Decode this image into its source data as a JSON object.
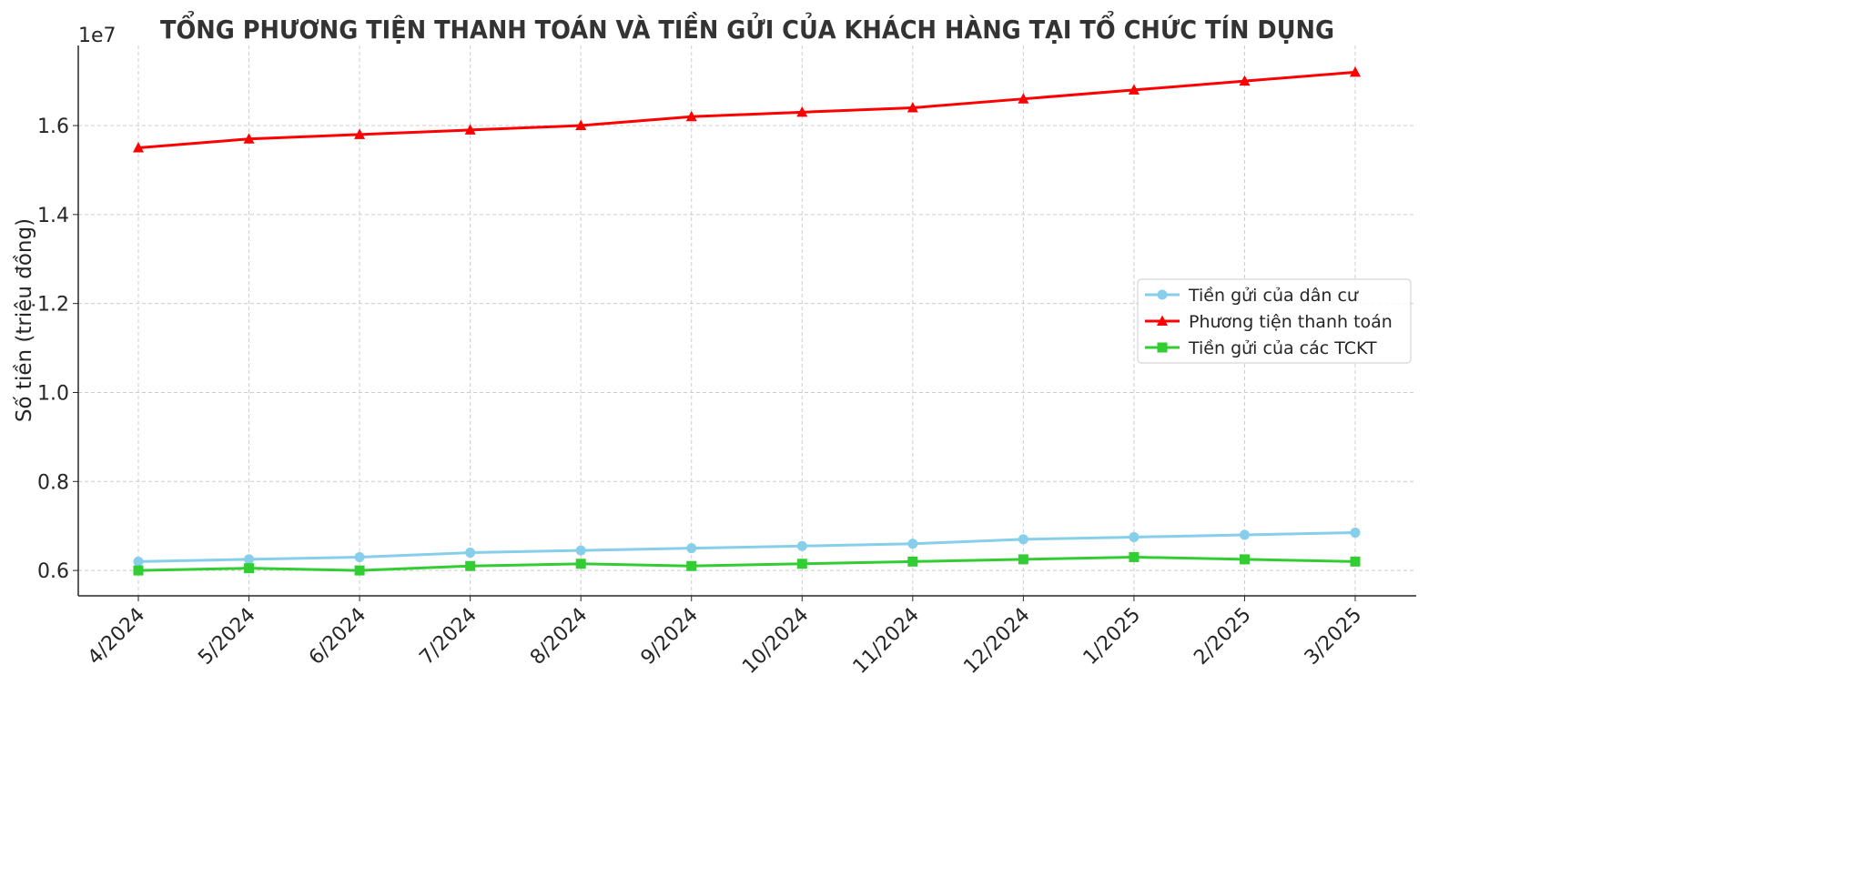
{
  "chart_data": {
    "type": "line",
    "title": "TỔNG PHƯƠNG TIỆN THANH TOÁN VÀ TIỀN GỬI CỦA KHÁCH HÀNG TẠI TỔ CHỨC TÍN DỤNG",
    "xlabel": "",
    "ylabel": "Số tiền (triệu đồng)",
    "y_scale_label": "1e7",
    "categories": [
      "4/2024",
      "5/2024",
      "6/2024",
      "7/2024",
      "8/2024",
      "9/2024",
      "10/2024",
      "11/2024",
      "12/2024",
      "1/2025",
      "2/2025",
      "3/2025"
    ],
    "ylim": [
      0.543,
      1.78
    ],
    "y_ticks": [
      0.6,
      0.8,
      1.0,
      1.2,
      1.4,
      1.6
    ],
    "y_tick_labels": [
      "0.6",
      "0.8",
      "1.0",
      "1.2",
      "1.4",
      "1.6"
    ],
    "grid": true,
    "legend_position": "center-right",
    "series": [
      {
        "name": "Tiền gửi của dân cư",
        "color": "#87ceeb",
        "marker": "circle",
        "values": [
          0.62,
          0.625,
          0.63,
          0.64,
          0.645,
          0.65,
          0.655,
          0.66,
          0.67,
          0.675,
          0.68,
          0.685
        ]
      },
      {
        "name": "Phương tiện thanh toán",
        "color": "#ff0000",
        "marker": "triangle",
        "values": [
          1.55,
          1.57,
          1.58,
          1.59,
          1.6,
          1.62,
          1.63,
          1.64,
          1.66,
          1.68,
          1.7,
          1.72
        ]
      },
      {
        "name": "Tiền gửi của các TCKT",
        "color": "#32cd32",
        "marker": "square",
        "values": [
          0.6,
          0.605,
          0.6,
          0.61,
          0.615,
          0.61,
          0.615,
          0.62,
          0.625,
          0.63,
          0.625,
          0.62
        ]
      }
    ]
  }
}
